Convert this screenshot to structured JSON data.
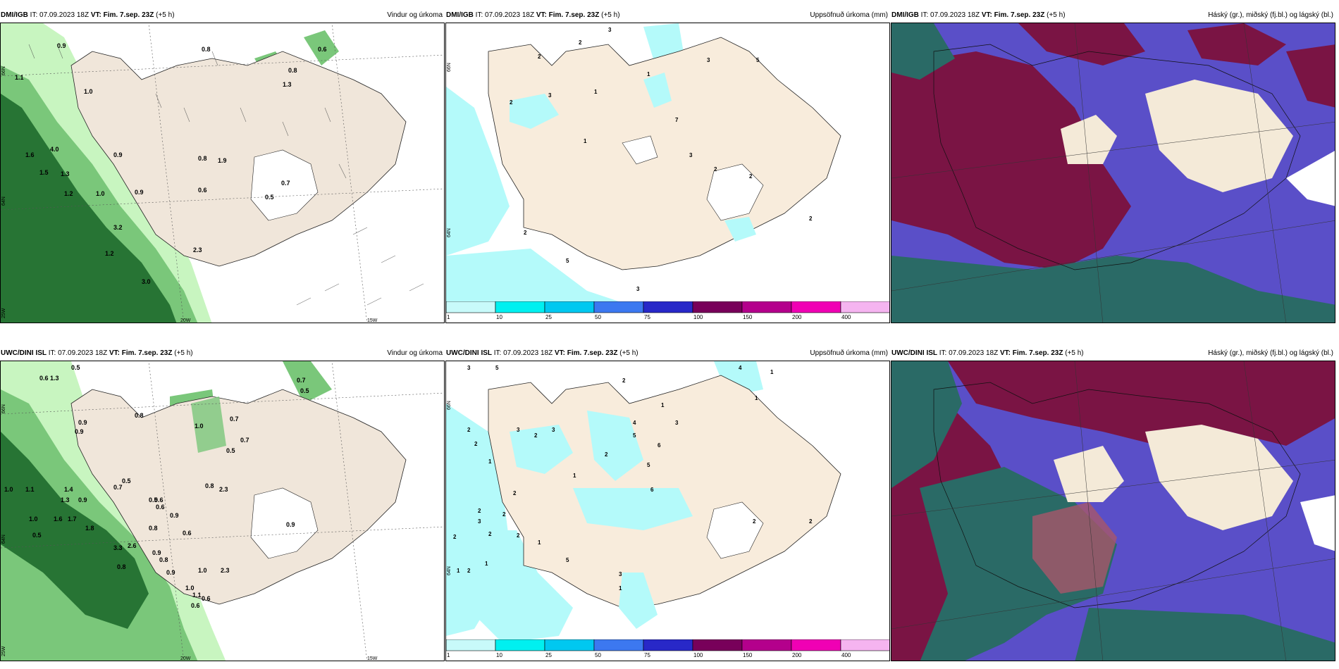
{
  "panels": [
    {
      "model": "DMI/IGB",
      "it": "IT: 07.09.2023 18Z",
      "vt": "VT: Fim. 7.sep. 23Z",
      "lead": "(+5 h)",
      "title": "Vindur og úrkoma"
    },
    {
      "model": "DMI/IGB",
      "it": "IT: 07.09.2023 18Z",
      "vt": "VT: Fim. 7.sep. 23Z",
      "lead": "(+5 h)",
      "title": "Uppsöfnuð úrkoma (mm)"
    },
    {
      "model": "DMI/IGB",
      "it": "IT: 07.09.2023 18Z",
      "vt": "VT: Fim. 7.sep. 23Z",
      "lead": "(+5 h)",
      "title": "Háský (gr.), miðský (fj.bl.) og lágský (bl.)"
    },
    {
      "model": "UWC/DINI ISL",
      "it": "IT: 07.09.2023 18Z",
      "vt": "VT: Fim. 7.sep. 23Z",
      "lead": "(+5 h)",
      "title": "Vindur og úrkoma"
    },
    {
      "model": "UWC/DINI ISL",
      "it": "IT: 07.09.2023 18Z",
      "vt": "VT: Fim. 7.sep. 23Z",
      "lead": "(+5 h)",
      "title": "Uppsöfnuð úrkoma (mm)"
    },
    {
      "model": "UWC/DINI ISL",
      "it": "IT: 07.09.2023 18Z",
      "vt": "VT: Fim. 7.sep. 23Z",
      "lead": "(+5 h)",
      "title": "Háský (gr.), miðský (fj.bl.) og lágský (bl.)"
    }
  ],
  "colorbar": {
    "ticks": [
      "1",
      "10",
      "25",
      "50",
      "75",
      "100",
      "150",
      "200",
      "400"
    ],
    "colors": [
      "#c8fafa",
      "#00f0f0",
      "#00c8f0",
      "#3c78f0",
      "#2828c8",
      "#78005a",
      "#b4008c",
      "#f000b4",
      "#f5b4f0"
    ]
  },
  "wind_labels": {
    "lat_66": "66N",
    "lat_64": "64N",
    "lon_25": "25W",
    "lon_20": "20W",
    "lon_15": "15W"
  },
  "precip_labels": {
    "lat_66": "66N",
    "lat_64": "64N"
  },
  "top_wind_values": [
    "0.9",
    "0.8",
    "0.6",
    "1.1",
    "1.0",
    "0.8",
    "1.3",
    "1.6",
    "4.0",
    "0.9",
    "1.5",
    "1.3",
    "0.8",
    "1.9",
    "0.7",
    "1.2",
    "1.0",
    "0.9",
    "0.6",
    "0.5",
    "3.2",
    "1.2",
    "3.0",
    "2.3"
  ],
  "bottom_wind_values": [
    "0.5",
    "0.6",
    "1.3",
    "0.8",
    "0.7",
    "0.5",
    "0.7",
    "1.0",
    "0.9",
    "0.9",
    "0.5",
    "0.7",
    "2.3",
    "0.8",
    "0.6",
    "0.9",
    "0.5",
    "1.0",
    "1.1",
    "1.4",
    "1.3",
    "0.9",
    "0.7",
    "0.5",
    "0.6",
    "0.9",
    "1.0",
    "1.6",
    "1.7",
    "1.8",
    "0.8",
    "0.6",
    "0.5",
    "3.3",
    "2.6",
    "0.9",
    "0.8",
    "0.8",
    "0.9",
    "0.6",
    "1.0",
    "0.6",
    "1.1",
    "2.3",
    "1.0"
  ],
  "top_precip_values": [
    "3",
    "2",
    "2",
    "3",
    "5",
    "2",
    "3",
    "1",
    "1",
    "7",
    "1",
    "2",
    "3",
    "2",
    "5",
    "2",
    "3",
    "2"
  ],
  "bottom_precip_values": [
    "3",
    "5",
    "4",
    "1",
    "1",
    "2",
    "2",
    "3",
    "3",
    "2",
    "2",
    "4",
    "5",
    "6",
    "3",
    "1",
    "2",
    "1",
    "1",
    "5",
    "6",
    "2",
    "2",
    "2",
    "3",
    "2",
    "2",
    "1",
    "2",
    "1",
    "5",
    "3",
    "2",
    "2",
    "1",
    "1",
    "2"
  ],
  "colors": {
    "land": "#f0e6da",
    "sea_precip": "#b4fafa",
    "green_light": "#c8f5c0",
    "green_mid": "#7ac77a",
    "green_dark": "#1e6a2c",
    "cloud_red": "#7a1444",
    "cloud_blue": "#5a4fc8",
    "cloud_teal": "#2a6a66"
  }
}
